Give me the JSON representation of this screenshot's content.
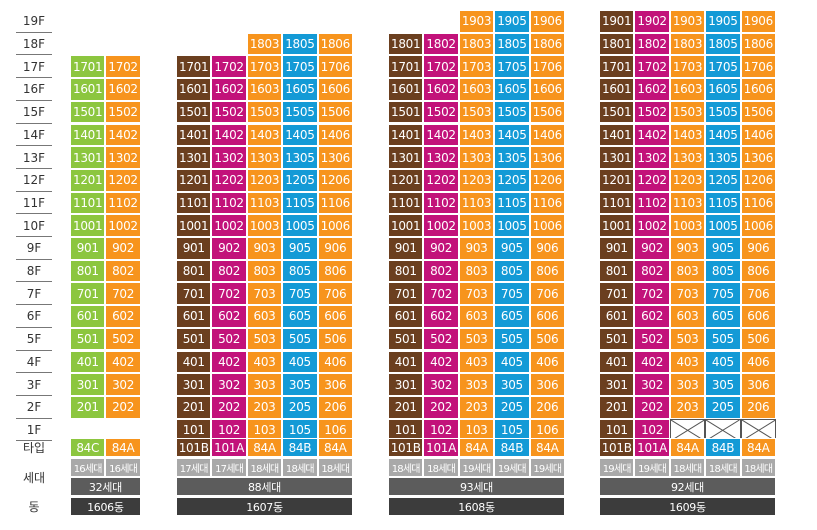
{
  "floor_labels": [
    "19F",
    "18F",
    "17F",
    "16F",
    "15F",
    "14F",
    "13F",
    "12F",
    "11F",
    "10F",
    "9F",
    "8F",
    "7F",
    "6F",
    "5F",
    "4F",
    "3F",
    "2F",
    "1F"
  ],
  "row_labels": {
    "type": "타입",
    "households": "세대",
    "building": "동"
  },
  "colors": {
    "brown": "#6b3f1f",
    "magenta": "#c2127a",
    "orange": "#f7941d",
    "blue": "#139ad6",
    "green": "#8cc63f"
  },
  "buildings": [
    {
      "name": "1606동",
      "total": "32세대",
      "units": [
        {
          "type": "84C",
          "households": "16세대",
          "color": "green",
          "suffix": "01",
          "top_floor": 17,
          "bottom_floor": 2,
          "empty_floors": [
            1
          ]
        },
        {
          "type": "84A",
          "households": "16세대",
          "color": "orange",
          "suffix": "02",
          "top_floor": 17,
          "bottom_floor": 2,
          "empty_floors": [
            1
          ]
        }
      ]
    },
    {
      "name": "1607동",
      "total": "88세대",
      "units": [
        {
          "type": "101B",
          "households": "17세대",
          "color": "brown",
          "suffix": "01",
          "top_floor": 17,
          "bottom_floor": 1,
          "empty_floors": []
        },
        {
          "type": "101A",
          "households": "17세대",
          "color": "magenta",
          "suffix": "02",
          "top_floor": 17,
          "bottom_floor": 1,
          "empty_floors": []
        },
        {
          "type": "84A",
          "households": "18세대",
          "color": "orange",
          "suffix": "03",
          "top_floor": 18,
          "bottom_floor": 1,
          "empty_floors": []
        },
        {
          "type": "84B",
          "households": "18세대",
          "color": "blue",
          "suffix": "05",
          "top_floor": 18,
          "bottom_floor": 1,
          "empty_floors": []
        },
        {
          "type": "84A",
          "households": "18세대",
          "color": "orange",
          "suffix": "06",
          "top_floor": 18,
          "bottom_floor": 1,
          "empty_floors": []
        }
      ]
    },
    {
      "name": "1608동",
      "total": "93세대",
      "units": [
        {
          "type": "101B",
          "households": "18세대",
          "color": "brown",
          "suffix": "01",
          "top_floor": 18,
          "bottom_floor": 1,
          "empty_floors": []
        },
        {
          "type": "101A",
          "households": "18세대",
          "color": "magenta",
          "suffix": "02",
          "top_floor": 18,
          "bottom_floor": 1,
          "empty_floors": []
        },
        {
          "type": "84A",
          "households": "19세대",
          "color": "orange",
          "suffix": "03",
          "top_floor": 19,
          "bottom_floor": 1,
          "empty_floors": []
        },
        {
          "type": "84B",
          "households": "19세대",
          "color": "blue",
          "suffix": "05",
          "top_floor": 19,
          "bottom_floor": 1,
          "empty_floors": []
        },
        {
          "type": "84A",
          "households": "19세대",
          "color": "orange",
          "suffix": "06",
          "top_floor": 19,
          "bottom_floor": 1,
          "empty_floors": []
        }
      ]
    },
    {
      "name": "1609동",
      "total": "92세대",
      "units": [
        {
          "type": "101B",
          "households": "19세대",
          "color": "brown",
          "suffix": "01",
          "top_floor": 19,
          "bottom_floor": 1,
          "empty_floors": []
        },
        {
          "type": "101A",
          "households": "19세대",
          "color": "magenta",
          "suffix": "02",
          "top_floor": 19,
          "bottom_floor": 1,
          "empty_floors": []
        },
        {
          "type": "84A",
          "households": "18세대",
          "color": "orange",
          "suffix": "03",
          "top_floor": 19,
          "bottom_floor": 1,
          "empty_floors": [
            1
          ]
        },
        {
          "type": "84B",
          "households": "18세대",
          "color": "blue",
          "suffix": "05",
          "top_floor": 19,
          "bottom_floor": 1,
          "empty_floors": [
            1
          ]
        },
        {
          "type": "84A",
          "households": "18세대",
          "color": "orange",
          "suffix": "06",
          "top_floor": 19,
          "bottom_floor": 1,
          "empty_floors": [
            1
          ]
        }
      ]
    }
  ]
}
